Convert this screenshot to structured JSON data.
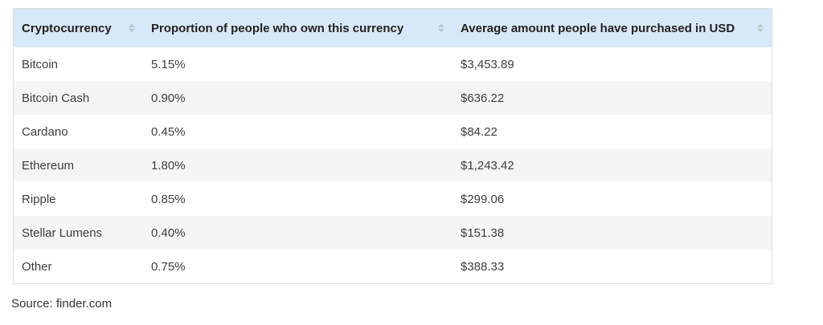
{
  "table": {
    "columns": [
      {
        "label": "Cryptocurrency",
        "sortable": true
      },
      {
        "label": "Proportion of people who own this currency",
        "sortable": true
      },
      {
        "label": "Average amount people have purchased in USD",
        "sortable": true
      }
    ],
    "rows": [
      {
        "currency": "Bitcoin",
        "proportion": "5.15%",
        "average": "$3,453.89"
      },
      {
        "currency": "Bitcoin Cash",
        "proportion": "0.90%",
        "average": "$636.22"
      },
      {
        "currency": "Cardano",
        "proportion": "0.45%",
        "average": "$84.22"
      },
      {
        "currency": "Ethereum",
        "proportion": "1.80%",
        "average": "$1,243.42"
      },
      {
        "currency": "Ripple",
        "proportion": "0.85%",
        "average": "$299.06"
      },
      {
        "currency": "Stellar Lumens",
        "proportion": "0.40%",
        "average": "$151.38"
      },
      {
        "currency": "Other",
        "proportion": "0.75%",
        "average": "$388.33"
      }
    ]
  },
  "source_caption": "Source: finder.com",
  "colors": {
    "header_background": "#d8e8f8",
    "stripe_background": "#f4f5f5",
    "table_border": "#d9dee1",
    "sort_icon": "#b9c2c9",
    "header_text": "#222222",
    "cell_text": "#3d3d3d"
  },
  "chart_data": {
    "type": "table",
    "title": "",
    "columns": [
      "Cryptocurrency",
      "Proportion of people who own this currency",
      "Average amount people have purchased in USD"
    ],
    "rows": [
      [
        "Bitcoin",
        "5.15%",
        "$3,453.89"
      ],
      [
        "Bitcoin Cash",
        "0.90%",
        "$636.22"
      ],
      [
        "Cardano",
        "0.45%",
        "$84.22"
      ],
      [
        "Ethereum",
        "1.80%",
        "$1,243.42"
      ],
      [
        "Ripple",
        "0.85%",
        "$299.06"
      ],
      [
        "Stellar Lumens",
        "0.40%",
        "$151.38"
      ],
      [
        "Other",
        "0.75%",
        "$388.33"
      ]
    ],
    "proportion_values_percent": [
      5.15,
      0.9,
      0.45,
      1.8,
      0.85,
      0.4,
      0.75
    ],
    "average_values_usd": [
      3453.89,
      636.22,
      84.22,
      1243.42,
      299.06,
      151.38,
      388.33
    ],
    "source": "finder.com",
    "layout": {
      "striped": true,
      "sortable_columns": true,
      "header_style": "light-blue"
    }
  }
}
